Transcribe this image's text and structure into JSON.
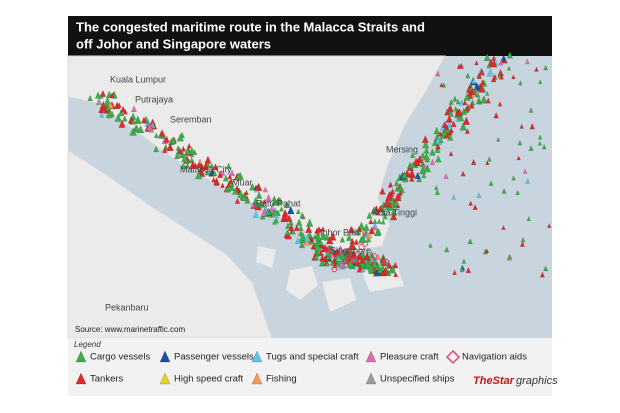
{
  "title_lines": [
    "The congested maritime route in the Malacca Straits and",
    "off Johor and Singapore waters"
  ],
  "map": {
    "places": [
      "Kuala Lumpur",
      "Putrajaya",
      "Seremban",
      "Malacca City",
      "Muar",
      "Batu Pahat",
      "Johor Bahru",
      "Kota Tinggi",
      "Singapore",
      "Pekanbaru",
      "Mersing"
    ],
    "source": "Source: www.marinetraffic.com"
  },
  "legend": {
    "title": "Legend",
    "items": [
      {
        "label": "Cargo vessels",
        "color": "#3fae49",
        "shape": "triangle"
      },
      {
        "label": "Passenger vessels",
        "color": "#1f4fa8",
        "shape": "triangle"
      },
      {
        "label": "Tugs and special craft",
        "color": "#5bc6e8",
        "shape": "triangle"
      },
      {
        "label": "Pleasure craft",
        "color": "#e06bb3",
        "shape": "triangle"
      },
      {
        "label": "Navigation aids",
        "color": "#e0457b",
        "shape": "diamond"
      },
      {
        "label": "Tankers",
        "color": "#e02a2a",
        "shape": "triangle"
      },
      {
        "label": "High speed craft",
        "color": "#e8d21f",
        "shape": "triangle"
      },
      {
        "label": "Fishing",
        "color": "#f29a5a",
        "shape": "triangle"
      },
      {
        "label": "Unspecified ships",
        "color": "#9a9a9a",
        "shape": "triangle"
      }
    ]
  },
  "credit": {
    "brand": "TheStar",
    "suffix": "graphics"
  }
}
